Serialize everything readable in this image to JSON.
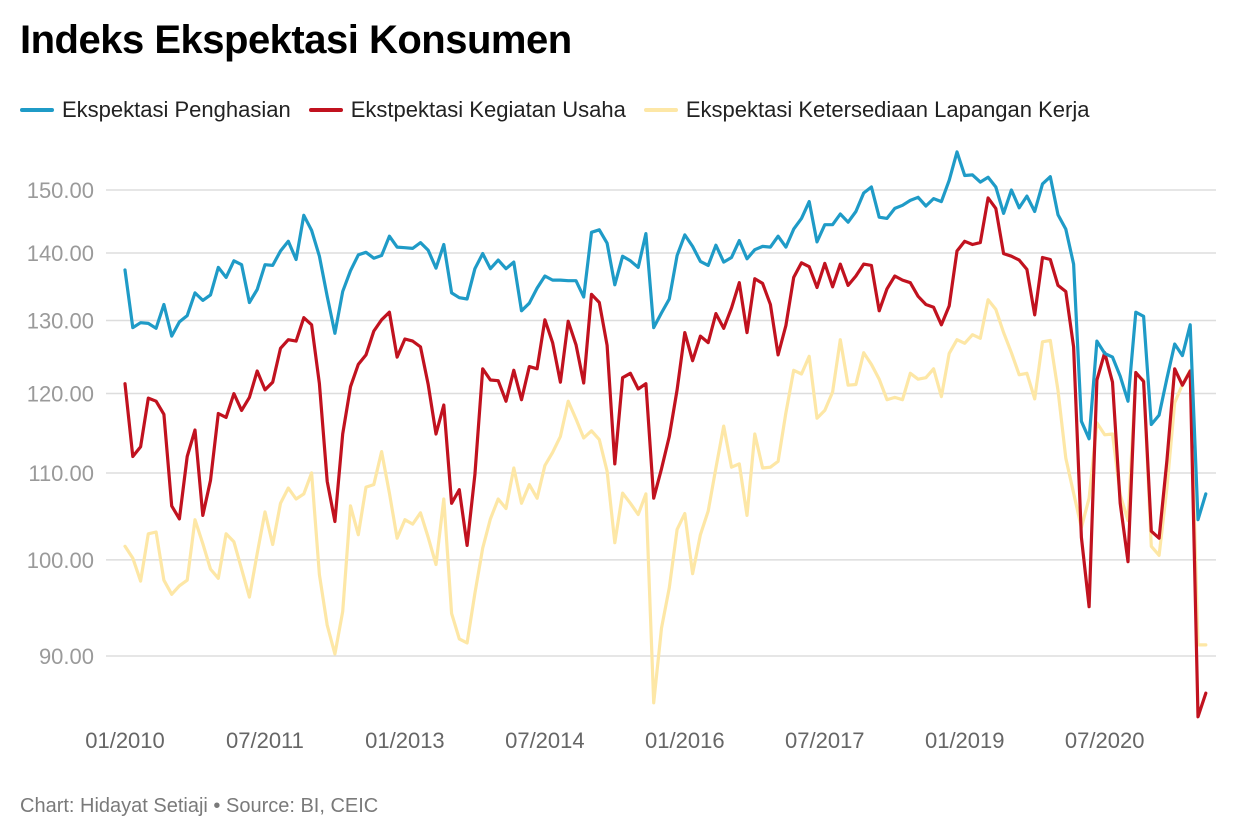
{
  "colors": {
    "penghasian": "#1f9bc7",
    "kegiatan_usaha": "#c1121f",
    "lapangan_kerja": "#fde7a6",
    "gridline": "#dddddd"
  },
  "footer": "Chart: Hidayat Setiaji • Source: BI, CEIC",
  "chart_data": {
    "type": "line",
    "title": "Indeks Ekspektasi Konsumen",
    "xlabel": "",
    "ylabel": "",
    "y_scale": "log",
    "ylim": [
      84,
      158
    ],
    "grid": true,
    "legend_position": "top",
    "y_ticks": [
      90,
      100,
      110,
      120,
      130,
      140,
      150
    ],
    "y_tick_labels": [
      "90.00",
      "100.00",
      "110.00",
      "120.00",
      "130.00",
      "140.00",
      "150.00"
    ],
    "x_tick_labels": [
      "01/2010",
      "07/2011",
      "01/2013",
      "07/2014",
      "01/2016",
      "07/2017",
      "01/2019",
      "07/2020"
    ],
    "x_tick_dates": [
      "2010-01",
      "2011-07",
      "2013-01",
      "2014-07",
      "2016-01",
      "2017-07",
      "2019-01",
      "2020-07"
    ],
    "x_start": "2010-01",
    "x_end": "2021-07",
    "series": [
      {
        "name": "Ekspektasi Penghasian",
        "color": "#1f9bc7",
        "values": [
          137.4,
          129,
          129.7,
          129.6,
          128.9,
          132.3,
          127.8,
          129.8,
          130.7,
          134,
          132.9,
          133.7,
          137.8,
          136.3,
          138.8,
          138.2,
          132.6,
          134.5,
          138.2,
          138.1,
          140.3,
          141.8,
          139,
          145.9,
          143.5,
          139.5,
          133.5,
          128.2,
          134.2,
          137.3,
          139.7,
          140.1,
          139.2,
          139.6,
          142.6,
          140.9,
          140.8,
          140.7,
          141.6,
          140.4,
          137.7,
          141.3,
          134,
          133.3,
          133.1,
          137.6,
          139.9,
          137.6,
          138.9,
          137.6,
          138.6,
          131.4,
          132.5,
          134.7,
          136.5,
          135.9,
          135.9,
          135.8,
          135.8,
          133.4,
          143.2,
          143.6,
          141.5,
          135.2,
          139.5,
          138.8,
          137.8,
          143,
          129,
          131.1,
          133.1,
          139.6,
          142.8,
          141,
          138.7,
          138.1,
          141.2,
          138.6,
          139.3,
          141.9,
          139.1,
          140.5,
          141,
          140.9,
          142.6,
          140.9,
          143.7,
          145.4,
          148.1,
          141.7,
          144.4,
          144.4,
          146.1,
          144.8,
          146.5,
          149.5,
          150.5,
          145.6,
          145.4,
          147,
          147.5,
          148.3,
          148.8,
          147.4,
          148.6,
          148.1,
          151.6,
          156.4,
          152.4,
          152.5,
          151.3,
          152.1,
          150.5,
          146.2,
          150,
          147.1,
          149,
          146.5,
          151,
          152.2,
          146,
          143.7,
          138.3,
          116.4,
          114.2,
          127.1,
          125.4,
          124.9,
          122.3,
          119,
          131.2,
          130.6,
          116,
          117.2,
          122,
          126.7,
          125.1,
          129.4,
          104.5,
          107.5
        ]
      },
      {
        "name": "Ekstpektasi Kegiatan Usaha",
        "color": "#c1121f",
        "values": [
          121.3,
          112,
          113.2,
          119.4,
          119,
          117.3,
          106.1,
          104.6,
          112,
          115.3,
          105,
          109.1,
          117.4,
          116.9,
          120,
          117.8,
          119.5,
          123,
          120.5,
          121.5,
          126.1,
          127.3,
          127.1,
          130.4,
          129.4,
          121.3,
          109,
          104.3,
          114.8,
          120.9,
          123.9,
          125.2,
          128.5,
          130.1,
          131.2,
          124.9,
          127.4,
          127.1,
          126.3,
          121.2,
          114.8,
          118.5,
          106.4,
          108,
          101.6,
          109.8,
          123.3,
          121.8,
          121.7,
          119,
          123.1,
          119.2,
          123.6,
          123.3,
          130.1,
          126.9,
          121.5,
          129.9,
          126.6,
          121.4,
          133.8,
          132.6,
          126.5,
          111.1,
          122.1,
          122.7,
          120.6,
          121.3,
          107,
          110.5,
          114.5,
          120.5,
          128.3,
          124.4,
          127.8,
          126.9,
          131,
          128.9,
          131.8,
          135.5,
          128.3,
          136.1,
          135.4,
          132.3,
          125.2,
          129.3,
          136.3,
          138.5,
          137.9,
          134.8,
          138.4,
          134.9,
          138.3,
          135.1,
          136.5,
          138.3,
          138.1,
          131.4,
          134.6,
          136.5,
          135.9,
          135.5,
          133.5,
          132.3,
          131.9,
          129.4,
          132.1,
          140.3,
          141.8,
          141.3,
          141.6,
          148.7,
          147,
          139.9,
          139.5,
          138.9,
          137.5,
          130.8,
          139.3,
          139,
          135.1,
          134.2,
          126.3,
          102.5,
          95,
          121.8,
          125.5,
          121.5,
          106.4,
          99.8,
          122.8,
          121.6,
          103.2,
          102.4,
          111.5,
          123.3,
          121.1,
          123,
          84.2,
          86.4
        ]
      },
      {
        "name": "Ekspektasi Ketersediaan Lapangan Kerja",
        "color": "#fde7a6",
        "values": [
          101.5,
          100.2,
          97.7,
          102.9,
          103.1,
          97.8,
          96.3,
          97.2,
          97.8,
          104.5,
          101.8,
          99,
          98,
          102.9,
          102,
          99,
          96,
          100.7,
          105.4,
          101.7,
          106.4,
          108.2,
          106.9,
          107.5,
          110,
          98.4,
          93.1,
          90.2,
          94.5,
          106.1,
          102.8,
          108.3,
          108.6,
          112.6,
          107.6,
          102.4,
          104.5,
          104,
          105.3,
          102.5,
          99.5,
          106.9,
          94.3,
          91.7,
          91.3,
          96.4,
          101.3,
          104.6,
          106.9,
          105.8,
          110.6,
          106.4,
          108.6,
          107,
          110.9,
          112.5,
          114.5,
          119,
          116.7,
          114.3,
          115.2,
          114.1,
          110.2,
          101.9,
          107.6,
          106.4,
          105.1,
          107.5,
          85.5,
          92.8,
          97,
          103.4,
          105.2,
          98.5,
          102.8,
          105.5,
          110.6,
          115.8,
          110.7,
          111.1,
          105,
          114.8,
          110.6,
          110.7,
          111.4,
          117.5,
          123.1,
          122.6,
          125,
          116.8,
          117.8,
          120.2,
          127.3,
          121.1,
          121.2,
          125.5,
          123.9,
          121.9,
          119.2,
          119.5,
          119.2,
          122.7,
          121.9,
          122.1,
          123.3,
          119.6,
          125.4,
          127.3,
          126.8,
          128,
          127.5,
          133,
          131.6,
          128.3,
          125.5,
          122.5,
          122.7,
          119.3,
          127,
          127.2,
          120.4,
          111.8,
          107.6,
          103.6,
          107,
          116.2,
          114.7,
          114.8,
          107.4,
          104.4,
          122.5,
          121.8,
          101.5,
          100.5,
          108.2,
          118.8,
          121.2,
          123.1,
          91.1,
          91.1
        ]
      }
    ]
  }
}
